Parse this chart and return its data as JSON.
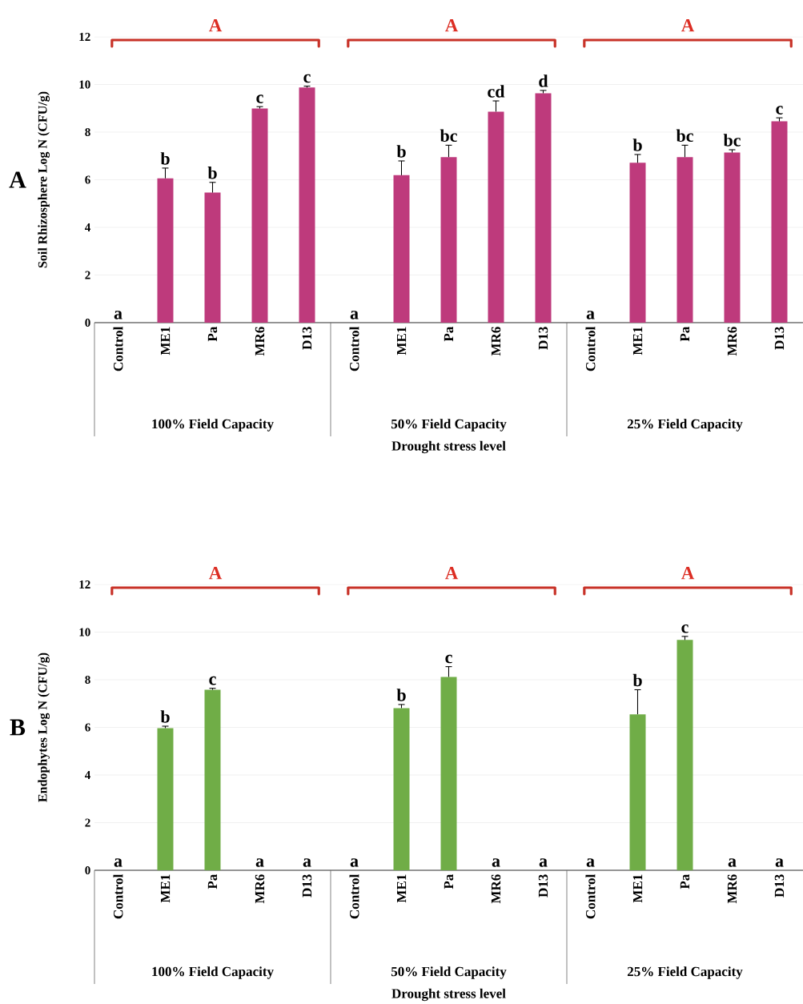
{
  "chart_data": [
    {
      "type": "bar",
      "ylabel": "Soil Rhizosphere Log N (CFU/g)",
      "xlabel": "Drought stress level",
      "categories": [
        "Control",
        "ME1",
        "Pa",
        "MR6",
        "D13",
        "Control",
        "ME1",
        "Pa",
        "MR6",
        "D13",
        "Control",
        "ME1",
        "Pa",
        "MR6",
        "D13"
      ],
      "values": [
        0,
        6.06,
        5.46,
        8.99,
        9.87,
        0,
        6.19,
        6.95,
        8.86,
        9.63,
        0,
        6.71,
        6.95,
        7.14,
        8.45
      ],
      "errors": [
        null,
        0.43,
        0.43,
        0.08,
        0.06,
        null,
        0.6,
        0.5,
        0.45,
        0.12,
        null,
        0.35,
        0.5,
        0.12,
        0.15
      ],
      "value_labels": [
        "a",
        "b",
        "b",
        "c",
        "c",
        "a",
        "b",
        "bc",
        "cd",
        "d",
        "a",
        "b",
        "bc",
        "bc",
        "c"
      ],
      "color": "#be3a7c",
      "ylim": [
        0,
        12
      ],
      "yticks": [
        0,
        2,
        4,
        6,
        8,
        10,
        12
      ],
      "grid": "y",
      "annotations": [
        "A",
        "A",
        "A",
        "A",
        "100% Field Capacity",
        "50% Field Capacity",
        "25% Field Capacity"
      ]
    },
    {
      "type": "bar",
      "ylabel": "Endophytes Log N (CFU/g)",
      "xlabel": "Drought stress level",
      "categories": [
        "Control",
        "ME1",
        "Pa",
        "MR6",
        "D13",
        "Control",
        "ME1",
        "Pa",
        "MR6",
        "D13",
        "Control",
        "ME1",
        "Pa",
        "MR6",
        "D13"
      ],
      "values": [
        0,
        5.97,
        7.58,
        0,
        0,
        0,
        6.81,
        8.12,
        0,
        0,
        0,
        6.55,
        9.67,
        0,
        0
      ],
      "errors": [
        null,
        0.08,
        0.06,
        null,
        null,
        null,
        0.15,
        0.43,
        null,
        null,
        null,
        1.03,
        0.15,
        null,
        null
      ],
      "value_labels": [
        "a",
        "b",
        "c",
        "a",
        "a",
        "a",
        "b",
        "c",
        "a",
        "a",
        "a",
        "b",
        "c",
        "a",
        "a"
      ],
      "color": "#70ad47",
      "ylim": [
        0,
        12
      ],
      "yticks": [
        0,
        2,
        4,
        6,
        8,
        10,
        12
      ],
      "grid": "y",
      "annotations": [
        "B",
        "A",
        "A",
        "A",
        "100% Field Capacity",
        "50% Field Capacity",
        "25% Field Capacity"
      ]
    }
  ]
}
